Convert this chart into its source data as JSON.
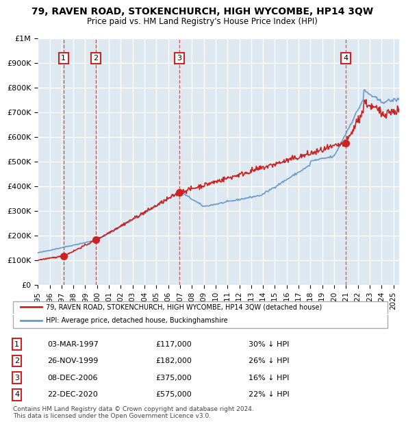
{
  "title": "79, RAVEN ROAD, STOKENCHURCH, HIGH WYCOMBE, HP14 3QW",
  "subtitle": "Price paid vs. HM Land Registry's House Price Index (HPI)",
  "ylabel": "",
  "background_color": "#dde8f0",
  "plot_bg_color": "#dde8f0",
  "grid_color": "#ffffff",
  "hpi_color": "#6699cc",
  "price_color": "#cc2222",
  "sale_marker_color": "#cc2222",
  "vline_color": "#cc3333",
  "ylim": [
    0,
    1000000
  ],
  "xlim_start": 1995.0,
  "xlim_end": 2025.5,
  "sales": [
    {
      "year": 1997.17,
      "price": 117000,
      "label": "1"
    },
    {
      "year": 1999.9,
      "price": 182000,
      "label": "2"
    },
    {
      "year": 2006.93,
      "price": 375000,
      "label": "3"
    },
    {
      "year": 2020.97,
      "price": 575000,
      "label": "4"
    }
  ],
  "table_rows": [
    {
      "num": "1",
      "date": "03-MAR-1997",
      "price": "£117,000",
      "hpi": "30% ↓ HPI"
    },
    {
      "num": "2",
      "date": "26-NOV-1999",
      "price": "£182,000",
      "hpi": "26% ↓ HPI"
    },
    {
      "num": "3",
      "date": "08-DEC-2006",
      "price": "£375,000",
      "hpi": "16% ↓ HPI"
    },
    {
      "num": "4",
      "date": "22-DEC-2020",
      "price": "£575,000",
      "hpi": "22% ↓ HPI"
    }
  ],
  "legend_line1": "79, RAVEN ROAD, STOKENCHURCH, HIGH WYCOMBE, HP14 3QW (detached house)",
  "legend_line2": "HPI: Average price, detached house, Buckinghamshire",
  "footnote": "Contains HM Land Registry data © Crown copyright and database right 2024.\nThis data is licensed under the Open Government Licence v3.0.",
  "yticks": [
    0,
    100000,
    200000,
    300000,
    400000,
    500000,
    600000,
    700000,
    800000,
    900000,
    1000000
  ],
  "ytick_labels": [
    "£0",
    "£100K",
    "£200K",
    "£300K",
    "£400K",
    "£500K",
    "£600K",
    "£700K",
    "£800K",
    "£900K",
    "£1M"
  ]
}
